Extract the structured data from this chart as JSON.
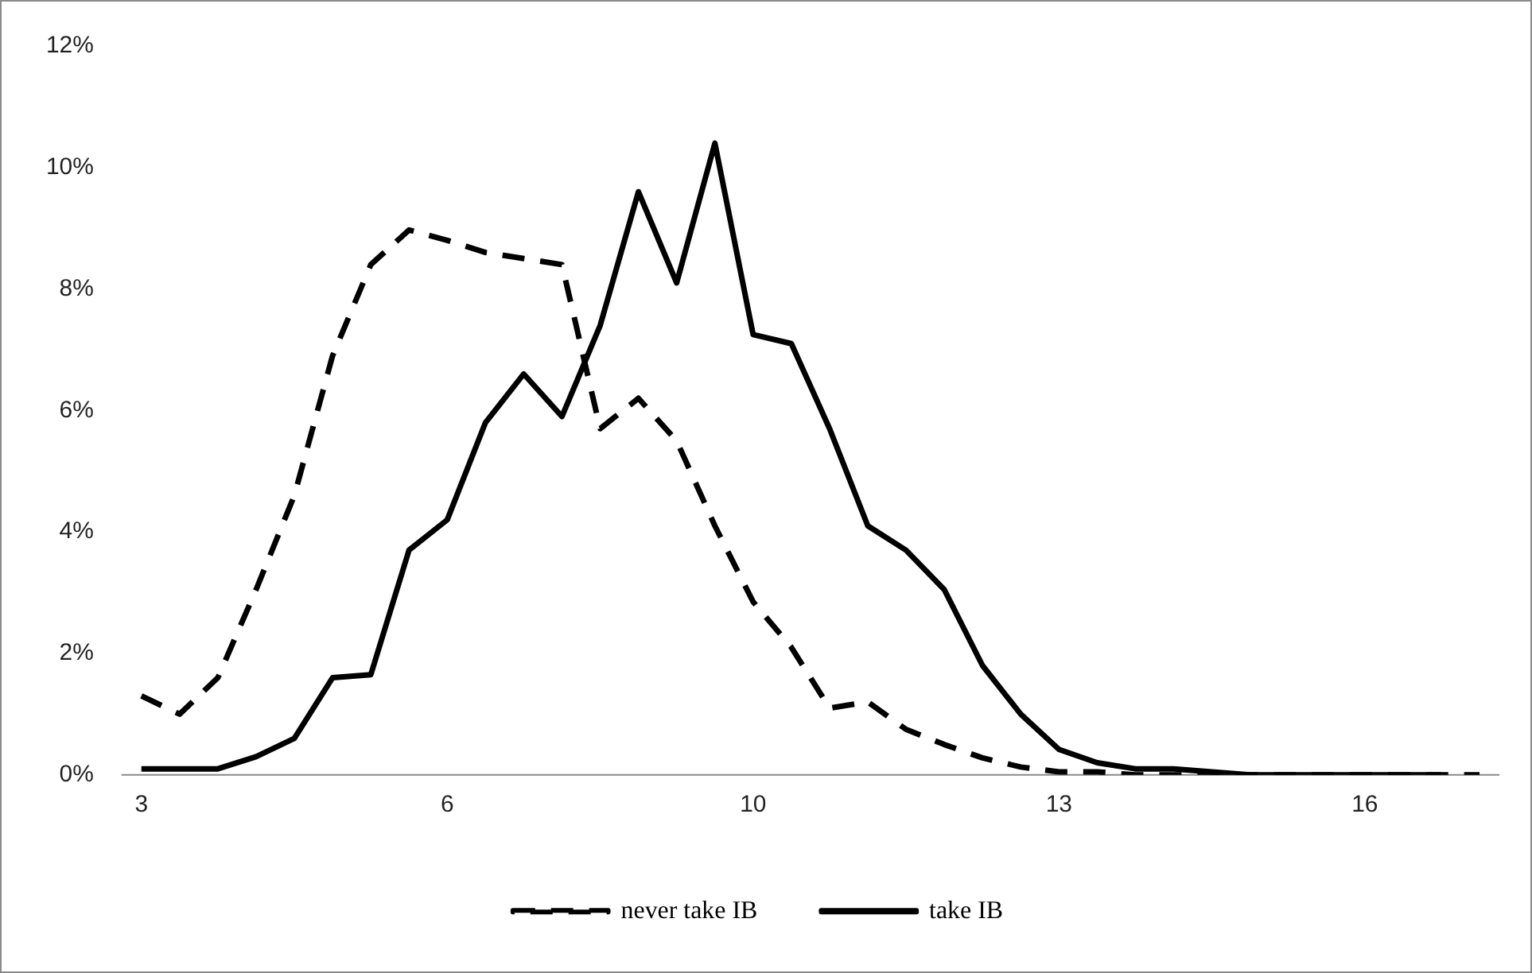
{
  "chart_data": {
    "type": "line",
    "categories": [
      "3",
      null,
      null,
      null,
      null,
      null,
      null,
      null,
      "6",
      null,
      null,
      null,
      null,
      null,
      null,
      null,
      "10",
      null,
      null,
      null,
      null,
      null,
      null,
      null,
      "13",
      null,
      null,
      null,
      null,
      null,
      null,
      null,
      "16",
      null,
      null,
      null
    ],
    "series": [
      {
        "name": "never take IB",
        "color": "#000000",
        "line_style": "dashed",
        "values": [
          1.3,
          1.0,
          1.6,
          3.05,
          4.6,
          6.9,
          8.4,
          8.97,
          8.8,
          8.6,
          8.5,
          8.4,
          5.7,
          6.2,
          5.5,
          4.1,
          2.85,
          2.1,
          1.1,
          1.2,
          0.75,
          0.5,
          0.28,
          0.13,
          0.05,
          0.05,
          0,
          0,
          0,
          0,
          0,
          0,
          0,
          0,
          0,
          0
        ]
      },
      {
        "name": "take IB",
        "color": "#000000",
        "line_style": "solid",
        "values": [
          0.1,
          0.1,
          0.1,
          0.3,
          0.6,
          1.6,
          1.65,
          3.7,
          4.2,
          5.8,
          6.6,
          5.9,
          7.4,
          9.6,
          8.1,
          10.4,
          7.25,
          7.1,
          5.7,
          4.1,
          3.7,
          3.05,
          1.8,
          1.0,
          0.42,
          0.2,
          0.1,
          0.1,
          0.05,
          0,
          0,
          0,
          0,
          0,
          0,
          null
        ]
      }
    ],
    "ylim": [
      0,
      12
    ],
    "yticks": [
      {
        "value": 0,
        "label": "0%"
      },
      {
        "value": 2,
        "label": "2%"
      },
      {
        "value": 4,
        "label": "4%"
      },
      {
        "value": 6,
        "label": "6%"
      },
      {
        "value": 8,
        "label": "8%"
      },
      {
        "value": 10,
        "label": "10%"
      },
      {
        "value": 12,
        "label": "12%"
      }
    ],
    "grid": false,
    "legend": "bottom",
    "marker": "none"
  }
}
